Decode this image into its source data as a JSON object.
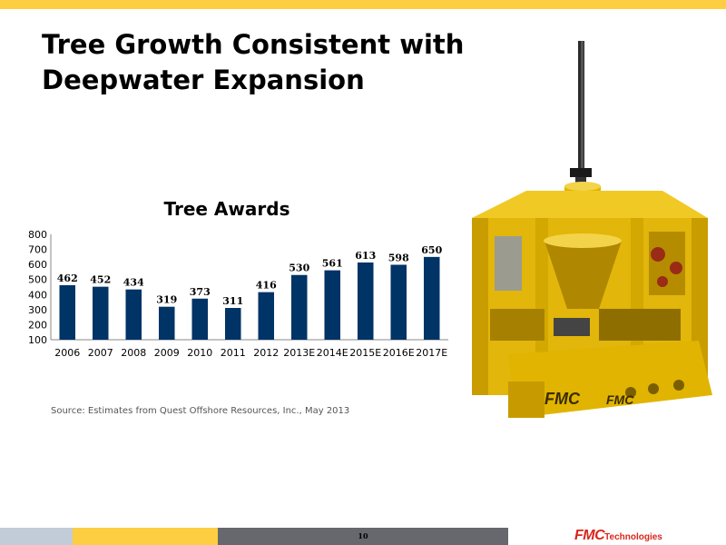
{
  "slide": {
    "title_line1": "Tree Growth Consistent with",
    "title_line2": "Deepwater Expansion",
    "source": "Source:  Estimates from Quest Offshore Resources, Inc., May 2013",
    "page_number": "10",
    "logo_fmc": "FMC",
    "logo_tech": "Technologies",
    "equipment_brand_1": "FMC",
    "equipment_brand_2": "FMC"
  },
  "colors": {
    "accent_yellow": "#fdcd42",
    "bar": "#003366",
    "footer_gray": "#66686d",
    "footer_light": "#c2ccd8",
    "logo_red": "#d9261c"
  },
  "chart_data": {
    "type": "bar",
    "title": "Tree Awards",
    "xlabel": "",
    "ylabel": "",
    "categories": [
      "2006",
      "2007",
      "2008",
      "2009",
      "2010",
      "2011",
      "2012",
      "2013E",
      "2014E",
      "2015E",
      "2016E",
      "2017E"
    ],
    "values": [
      462,
      452,
      434,
      319,
      373,
      311,
      416,
      530,
      561,
      613,
      598,
      650
    ],
    "ylim": [
      100,
      800
    ],
    "yticks": [
      100,
      200,
      300,
      400,
      500,
      600,
      700,
      800
    ],
    "data_labels": true,
    "grid": false,
    "legend": "none"
  }
}
